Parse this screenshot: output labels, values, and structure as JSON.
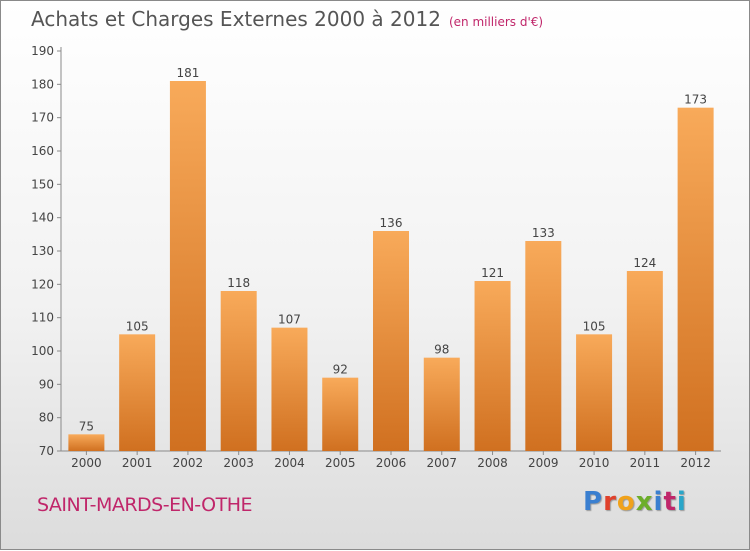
{
  "title": "Achats et Charges Externes 2000 à 2012",
  "subtitle": "(en milliers d'€)",
  "city": "SAINT-MARDS-EN-OTHE",
  "logo": {
    "letters": [
      "P",
      "r",
      "o",
      "x",
      "i",
      "t",
      "i"
    ],
    "colors": [
      "#3a7fd0",
      "#e0412b",
      "#f0a21b",
      "#6cae2a",
      "#3a7fd0",
      "#c0266a",
      "#2aa6c9"
    ]
  },
  "colors": {
    "bar_top": "#f8aa5a",
    "bar_bottom": "#d07020",
    "axis": "#8a8a8a",
    "label": "#444444"
  },
  "chart_data": {
    "type": "bar",
    "categories": [
      "2000",
      "2001",
      "2002",
      "2003",
      "2004",
      "2005",
      "2006",
      "2007",
      "2008",
      "2009",
      "2010",
      "2011",
      "2012"
    ],
    "values": [
      75,
      105,
      181,
      118,
      107,
      92,
      136,
      98,
      121,
      133,
      105,
      124,
      173
    ],
    "ylim": [
      70,
      190
    ],
    "yticks": [
      70,
      80,
      90,
      100,
      110,
      120,
      130,
      140,
      150,
      160,
      170,
      180,
      190
    ],
    "grid": false,
    "data_labels": true
  }
}
